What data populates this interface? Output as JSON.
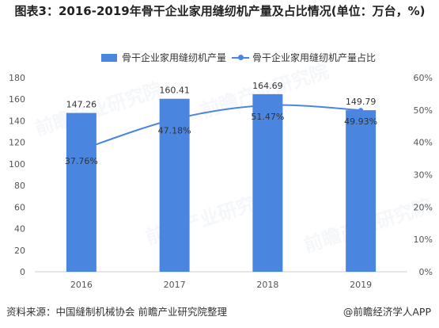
{
  "title": "图表3：2016-2019年骨干企业家用缝纫机产量及占比情况(单位：万台，%)",
  "source": "资料来源：中国缝制机械协会  前瞻产业研究院整理",
  "brand": "@前瞻经济学人APP",
  "watermark": "前瞻产业研究院",
  "colors": {
    "bar": "#4a86e0",
    "line": "#4a86e0",
    "axis": "#cccccc"
  },
  "chart_data": {
    "type": "bar",
    "categories": [
      "2016",
      "2017",
      "2018",
      "2019"
    ],
    "series": [
      {
        "name": "骨干企业家用缝纫机产量",
        "type": "bar",
        "axis": "left",
        "values": [
          147.26,
          160.41,
          164.69,
          149.79
        ],
        "labels": [
          "147.26",
          "160.41",
          "164.69",
          "149.79"
        ]
      },
      {
        "name": "骨干企业家用缝纫机产量占比",
        "type": "line",
        "axis": "right",
        "values": [
          37.76,
          47.18,
          51.47,
          49.93
        ],
        "labels": [
          "37.76%",
          "47.18%",
          "51.47%",
          "49.93%"
        ]
      }
    ],
    "y_left": {
      "min": 0,
      "max": 180,
      "ticks": [
        "0",
        "20",
        "40",
        "60",
        "80",
        "100",
        "120",
        "140",
        "160",
        "180"
      ]
    },
    "y_right": {
      "min": 0,
      "max": 60,
      "ticks": [
        "0%",
        "10%",
        "20%",
        "30%",
        "40%",
        "50%",
        "60%"
      ]
    },
    "legend_position": "top-center",
    "grid": false
  }
}
